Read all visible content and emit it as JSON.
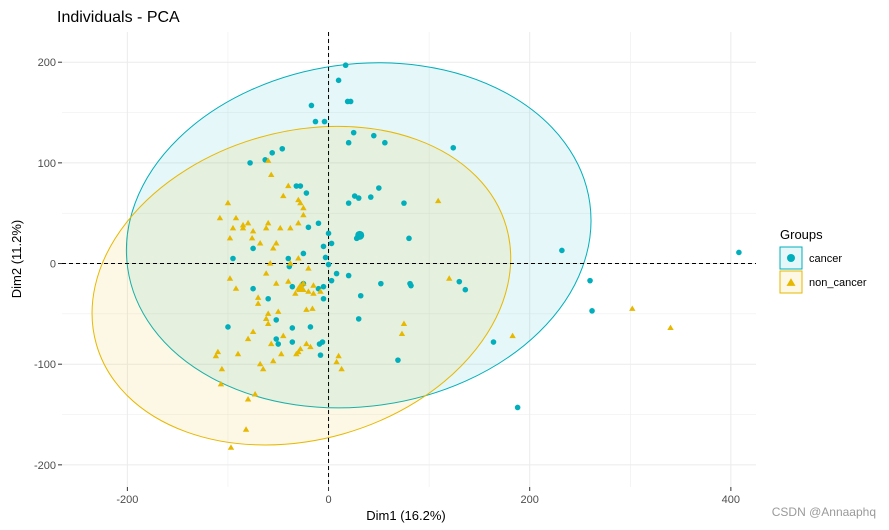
{
  "chart_data": {
    "type": "scatter",
    "title": "Individuals - PCA",
    "xlabel": "Dim1 (16.2%)",
    "ylabel": "Dim2 (11.2%)",
    "xlim": [
      -265,
      425
    ],
    "ylim": [
      -222,
      230
    ],
    "x_ticks": [
      -200,
      0,
      200,
      400
    ],
    "y_ticks": [
      -200,
      -100,
      0,
      100,
      200
    ],
    "x_tick_labels": [
      "-200",
      "0",
      "200",
      "400"
    ],
    "y_tick_labels": [
      "-200",
      "-100",
      "0",
      "100",
      "200"
    ],
    "grid": true,
    "legend": {
      "title": "Groups",
      "position": "right"
    },
    "reference_lines": {
      "x": 0,
      "y": 0,
      "style": "dashed"
    },
    "series": [
      {
        "name": "cancer",
        "color": "#00AFBB",
        "marker": "circle",
        "centroid": [
          31,
          28
        ],
        "ellipse": {
          "center": [
            30,
            28
          ],
          "rx": 232,
          "ry": 170,
          "angle_deg": -8
        },
        "points": [
          [
            17,
            197
          ],
          [
            10,
            182
          ],
          [
            -17,
            157
          ],
          [
            22,
            161
          ],
          [
            19,
            161
          ],
          [
            -13,
            141
          ],
          [
            -4,
            141
          ],
          [
            124,
            115
          ],
          [
            -46,
            114
          ],
          [
            -56,
            110
          ],
          [
            25,
            130
          ],
          [
            45,
            127
          ],
          [
            56,
            120
          ],
          [
            20,
            120
          ],
          [
            -78,
            100
          ],
          [
            -63,
            103
          ],
          [
            -32,
            77
          ],
          [
            -28,
            77
          ],
          [
            -22,
            70
          ],
          [
            42,
            66
          ],
          [
            26,
            67
          ],
          [
            50,
            75
          ],
          [
            20,
            60
          ],
          [
            -10,
            40
          ],
          [
            3,
            20
          ],
          [
            -20,
            36
          ],
          [
            30,
            65
          ],
          [
            75,
            60
          ],
          [
            80,
            25
          ],
          [
            0,
            30
          ],
          [
            -25,
            10
          ],
          [
            28,
            25
          ],
          [
            -5,
            17
          ],
          [
            -3,
            6
          ],
          [
            232,
            13
          ],
          [
            408,
            11
          ],
          [
            -40,
            5
          ],
          [
            -95,
            5
          ],
          [
            -75,
            15
          ],
          [
            -39,
            -3
          ],
          [
            0,
            -1
          ],
          [
            32,
            -32
          ],
          [
            -25,
            -20
          ],
          [
            20,
            -12
          ],
          [
            -5,
            -23
          ],
          [
            -10,
            -25
          ],
          [
            -75,
            -25
          ],
          [
            -36,
            -23
          ],
          [
            -5,
            -35
          ],
          [
            52,
            -20
          ],
          [
            82,
            -22
          ],
          [
            130,
            -18
          ],
          [
            136,
            -26
          ],
          [
            81,
            -20
          ],
          [
            260,
            -17
          ],
          [
            262,
            -47
          ],
          [
            30,
            -55
          ],
          [
            -18,
            -63
          ],
          [
            -36,
            -64
          ],
          [
            -60,
            -35
          ],
          [
            -52,
            -56
          ],
          [
            -52,
            -75
          ],
          [
            -50,
            -80
          ],
          [
            -100,
            -63
          ],
          [
            -6,
            -78
          ],
          [
            -9,
            -80
          ],
          [
            -8,
            -91
          ],
          [
            -36,
            -78
          ],
          [
            69,
            -96
          ],
          [
            164,
            -78
          ],
          [
            188,
            -143
          ],
          [
            3,
            -17
          ],
          [
            8,
            -10
          ]
        ]
      },
      {
        "name": "non_cancer",
        "color": "#E7B800",
        "marker": "triangle",
        "centroid": [
          -27,
          -25
        ],
        "ellipse": {
          "center": [
            -27,
            -22
          ],
          "rx": 212,
          "ry": 153,
          "angle_deg": -16
        },
        "points": [
          [
            -60,
            102
          ],
          [
            -57,
            88
          ],
          [
            -40,
            77
          ],
          [
            -45,
            67
          ],
          [
            -30,
            63
          ],
          [
            -25,
            55
          ],
          [
            -100,
            60
          ],
          [
            -92,
            45
          ],
          [
            -108,
            45
          ],
          [
            -85,
            38
          ],
          [
            -80,
            40
          ],
          [
            -60,
            40
          ],
          [
            -62,
            35
          ],
          [
            -85,
            35
          ],
          [
            -98,
            25
          ],
          [
            -95,
            35
          ],
          [
            -75,
            32
          ],
          [
            -76,
            25
          ],
          [
            -38,
            35
          ],
          [
            -48,
            35
          ],
          [
            -30,
            40
          ],
          [
            -28,
            60
          ],
          [
            -25,
            48
          ],
          [
            109,
            62
          ],
          [
            -55,
            15
          ],
          [
            -68,
            20
          ],
          [
            -52,
            20
          ],
          [
            -30,
            5
          ],
          [
            -38,
            0
          ],
          [
            -62,
            -10
          ],
          [
            -58,
            0
          ],
          [
            -98,
            -15
          ],
          [
            -92,
            -25
          ],
          [
            -30,
            -25
          ],
          [
            -28,
            -22
          ],
          [
            -25,
            -20
          ],
          [
            -20,
            -28
          ],
          [
            -15,
            -22
          ],
          [
            -33,
            -30
          ],
          [
            -40,
            -18
          ],
          [
            -52,
            -20
          ],
          [
            -20,
            -5
          ],
          [
            120,
            -15
          ],
          [
            -8,
            -28
          ],
          [
            -15,
            -30
          ],
          [
            -16,
            -45
          ],
          [
            -70,
            -34
          ],
          [
            -70,
            -40
          ],
          [
            -22,
            -46
          ],
          [
            -50,
            -48
          ],
          [
            -60,
            -50
          ],
          [
            -60,
            -60
          ],
          [
            -62,
            -55
          ],
          [
            -75,
            -68
          ],
          [
            -80,
            -75
          ],
          [
            -90,
            -90
          ],
          [
            -110,
            -88
          ],
          [
            -112,
            -92
          ],
          [
            -106,
            -105
          ],
          [
            -45,
            -72
          ],
          [
            -57,
            -80
          ],
          [
            -55,
            -97
          ],
          [
            -47,
            -90
          ],
          [
            -30,
            -88
          ],
          [
            -22,
            -80
          ],
          [
            -28,
            -85
          ],
          [
            -18,
            -83
          ],
          [
            -32,
            -90
          ],
          [
            -68,
            -100
          ],
          [
            -65,
            -105
          ],
          [
            8,
            -98
          ],
          [
            13,
            -105
          ],
          [
            10,
            -92
          ],
          [
            75,
            -60
          ],
          [
            73,
            -70
          ],
          [
            183,
            -72
          ],
          [
            -107,
            -120
          ],
          [
            -80,
            -135
          ],
          [
            -97,
            -183
          ],
          [
            -82,
            -165
          ],
          [
            302,
            -45
          ],
          [
            340,
            -64
          ],
          [
            -73,
            -130
          ]
        ]
      }
    ]
  },
  "watermark": "CSDN @Annaaphq"
}
